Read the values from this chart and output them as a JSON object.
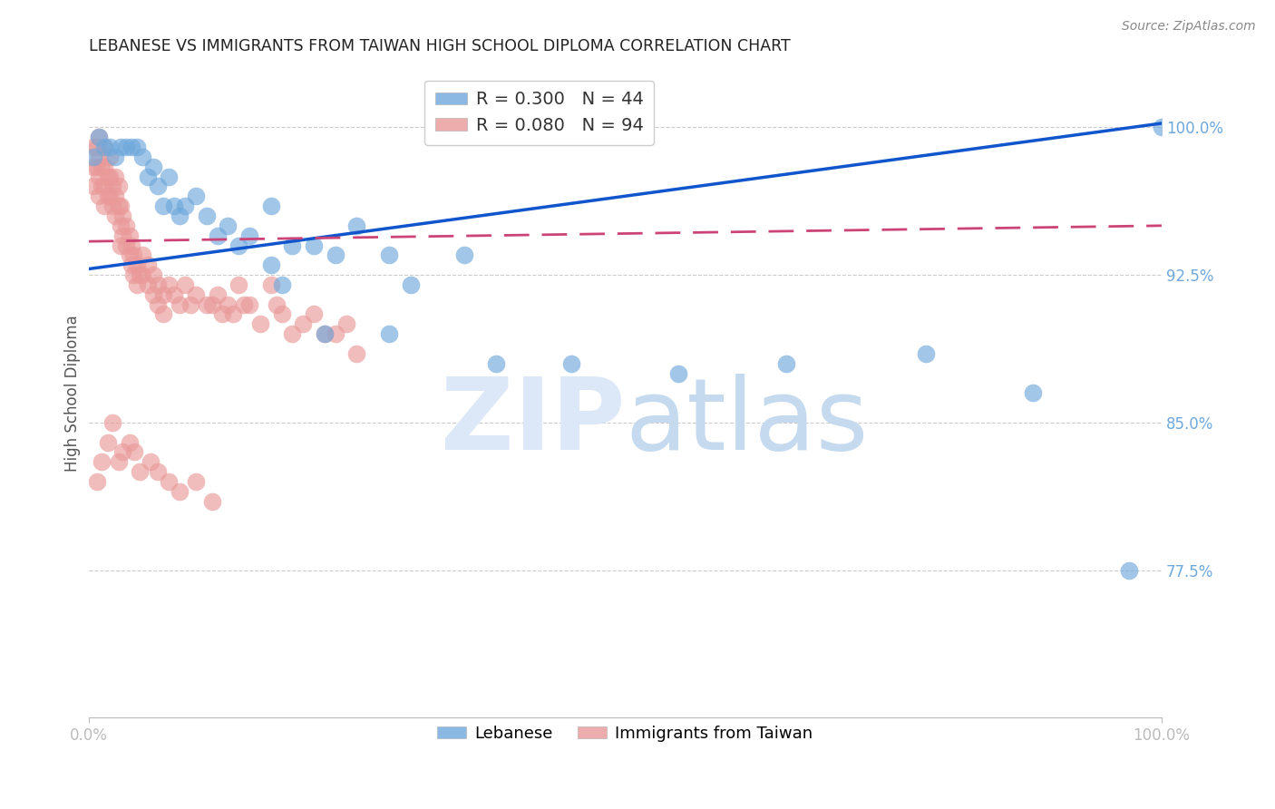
{
  "title": "LEBANESE VS IMMIGRANTS FROM TAIWAN HIGH SCHOOL DIPLOMA CORRELATION CHART",
  "source": "Source: ZipAtlas.com",
  "ylabel": "High School Diploma",
  "xlim": [
    0.0,
    1.0
  ],
  "ylim": [
    0.7,
    1.03
  ],
  "yticks": [
    0.775,
    0.85,
    0.925,
    1.0
  ],
  "ytick_labels": [
    "77.5%",
    "85.0%",
    "92.5%",
    "100.0%"
  ],
  "legend_r_blue": "0.300",
  "legend_n_blue": "44",
  "legend_r_pink": "0.080",
  "legend_n_pink": "94",
  "blue_color": "#6fa8dc",
  "pink_color": "#ea9999",
  "blue_line_color": "#1155cc",
  "pink_line_color": "#cc4477",
  "grid_color": "#cccccc",
  "title_color": "#222222",
  "axis_label_color": "#555555",
  "tick_color": "#6fa8dc",
  "watermark_zip_color": "#dce8f8",
  "watermark_atlas_color": "#c5daef",
  "blue_x": [
    0.005,
    0.01,
    0.015,
    0.02,
    0.025,
    0.03,
    0.035,
    0.04,
    0.045,
    0.05,
    0.055,
    0.06,
    0.065,
    0.07,
    0.075,
    0.08,
    0.085,
    0.09,
    0.1,
    0.11,
    0.12,
    0.13,
    0.14,
    0.15,
    0.17,
    0.19,
    0.21,
    0.23,
    0.25,
    0.28,
    0.3,
    0.35,
    0.17,
    0.18,
    0.22,
    0.28,
    0.38,
    0.45,
    0.55,
    0.65,
    0.78,
    0.88,
    0.97,
    1.0
  ],
  "blue_y": [
    0.985,
    0.995,
    0.99,
    0.99,
    0.985,
    0.99,
    0.99,
    0.99,
    0.99,
    0.985,
    0.975,
    0.98,
    0.97,
    0.96,
    0.975,
    0.96,
    0.955,
    0.96,
    0.965,
    0.955,
    0.945,
    0.95,
    0.94,
    0.945,
    0.96,
    0.94,
    0.94,
    0.935,
    0.95,
    0.935,
    0.92,
    0.935,
    0.93,
    0.92,
    0.895,
    0.895,
    0.88,
    0.88,
    0.875,
    0.88,
    0.885,
    0.865,
    0.775,
    1.0
  ],
  "pink_x": [
    0.005,
    0.005,
    0.005,
    0.008,
    0.008,
    0.01,
    0.01,
    0.01,
    0.01,
    0.012,
    0.012,
    0.015,
    0.015,
    0.015,
    0.015,
    0.018,
    0.018,
    0.02,
    0.02,
    0.02,
    0.022,
    0.022,
    0.025,
    0.025,
    0.025,
    0.028,
    0.028,
    0.03,
    0.03,
    0.03,
    0.032,
    0.032,
    0.035,
    0.035,
    0.038,
    0.038,
    0.04,
    0.04,
    0.042,
    0.042,
    0.045,
    0.045,
    0.048,
    0.05,
    0.05,
    0.055,
    0.055,
    0.06,
    0.06,
    0.065,
    0.065,
    0.07,
    0.07,
    0.075,
    0.08,
    0.085,
    0.09,
    0.095,
    0.1,
    0.11,
    0.115,
    0.12,
    0.125,
    0.13,
    0.135,
    0.14,
    0.145,
    0.15,
    0.16,
    0.17,
    0.175,
    0.18,
    0.19,
    0.2,
    0.21,
    0.22,
    0.23,
    0.24,
    0.25,
    0.008,
    0.012,
    0.018,
    0.022,
    0.028,
    0.032,
    0.038,
    0.043,
    0.048,
    0.058,
    0.065,
    0.075,
    0.085,
    0.1,
    0.115
  ],
  "pink_y": [
    0.99,
    0.98,
    0.97,
    0.99,
    0.98,
    0.995,
    0.985,
    0.975,
    0.965,
    0.98,
    0.97,
    0.99,
    0.98,
    0.97,
    0.96,
    0.975,
    0.965,
    0.985,
    0.975,
    0.965,
    0.97,
    0.96,
    0.975,
    0.965,
    0.955,
    0.97,
    0.96,
    0.96,
    0.95,
    0.94,
    0.955,
    0.945,
    0.95,
    0.94,
    0.945,
    0.935,
    0.94,
    0.93,
    0.935,
    0.925,
    0.93,
    0.92,
    0.925,
    0.935,
    0.925,
    0.93,
    0.92,
    0.925,
    0.915,
    0.92,
    0.91,
    0.915,
    0.905,
    0.92,
    0.915,
    0.91,
    0.92,
    0.91,
    0.915,
    0.91,
    0.91,
    0.915,
    0.905,
    0.91,
    0.905,
    0.92,
    0.91,
    0.91,
    0.9,
    0.92,
    0.91,
    0.905,
    0.895,
    0.9,
    0.905,
    0.895,
    0.895,
    0.9,
    0.885,
    0.82,
    0.83,
    0.84,
    0.85,
    0.83,
    0.835,
    0.84,
    0.835,
    0.825,
    0.83,
    0.825,
    0.82,
    0.815,
    0.82,
    0.81
  ],
  "blue_line_x0": 0.0,
  "blue_line_x1": 1.0,
  "blue_line_y0": 0.928,
  "blue_line_y1": 1.002,
  "pink_line_x0": 0.0,
  "pink_line_x1": 1.0,
  "pink_line_y0": 0.942,
  "pink_line_y1": 0.95
}
